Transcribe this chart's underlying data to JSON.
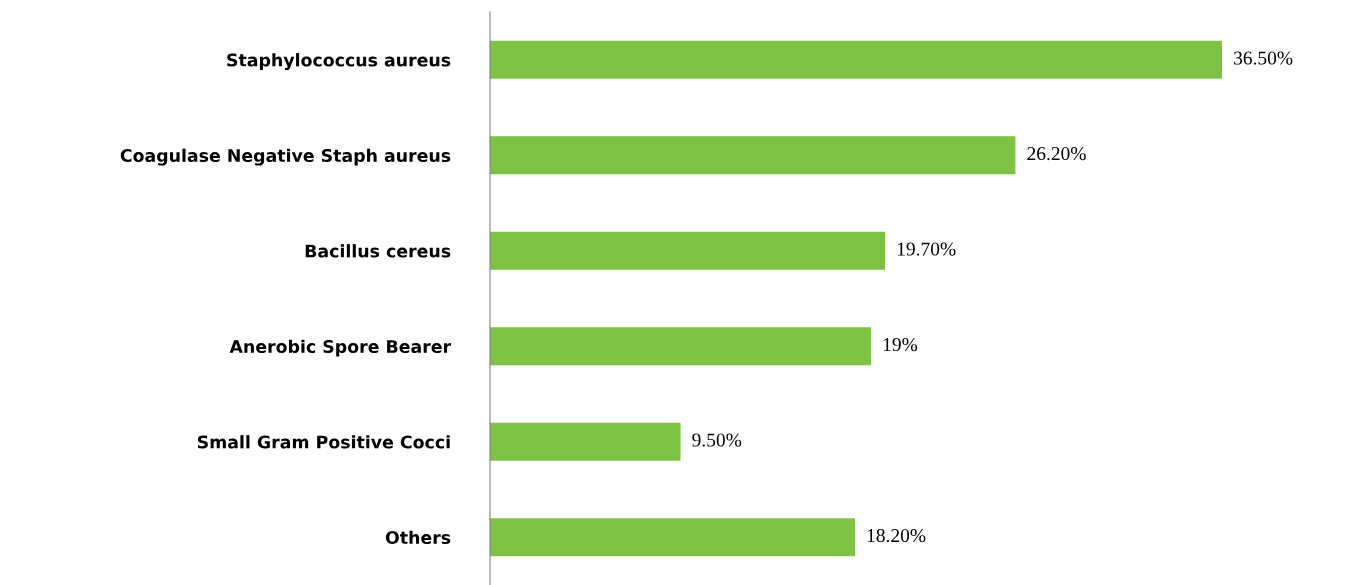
{
  "chart_data": {
    "type": "bar",
    "orientation": "horizontal",
    "categories": [
      "Staphylococcus aureus",
      "Coagulase Negative Staph aureus",
      "Bacillus cereus",
      "Anerobic Spore Bearer",
      "Small Gram Positive Cocci",
      "Others"
    ],
    "values": [
      36.5,
      26.2,
      19.7,
      19,
      9.5,
      18.2
    ],
    "value_labels": [
      "36.50%",
      "26.20%",
      "19.70%",
      "19%",
      "9.50%",
      "18.20%"
    ],
    "color": "#7dc242",
    "tick_labels": "y",
    "grid": false,
    "legend": false
  }
}
